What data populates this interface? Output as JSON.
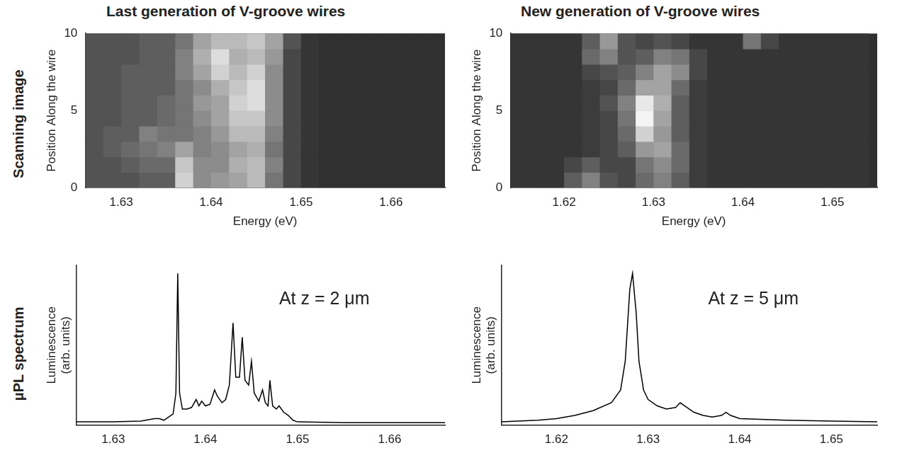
{
  "column_titles": [
    "Last generation of V-groove wires",
    "New generation of V-groove wires"
  ],
  "row_labels": [
    "Scanning image",
    "μPL spectrum"
  ],
  "chart_data": [
    {
      "type": "heatmap",
      "x_label": "Energy (eV)",
      "y_label": "Position Along the wire",
      "xlim": [
        1.626,
        1.666
      ],
      "xticks": [
        1.63,
        1.64,
        1.65,
        1.66
      ],
      "ylim": [
        0,
        10
      ],
      "yticks": [
        0,
        5,
        10
      ],
      "grid": false,
      "cells": {
        "x_edges": [
          1.626,
          1.628,
          1.63,
          1.632,
          1.634,
          1.636,
          1.638,
          1.64,
          1.642,
          1.644,
          1.646,
          1.648,
          1.65,
          1.652,
          1.654,
          1.656,
          1.658,
          1.66,
          1.662,
          1.664,
          1.666
        ],
        "y_edges": [
          0,
          1,
          2,
          3,
          4,
          5,
          6,
          7,
          8,
          9,
          10
        ],
        "values": [
          [
            0.25,
            0.25,
            0.25,
            0.3,
            0.3,
            0.8,
            0.5,
            0.55,
            0.6,
            0.7,
            0.4,
            0.2,
            0.12,
            0.1,
            0.1,
            0.1,
            0.1,
            0.1,
            0.1,
            0.1
          ],
          [
            0.25,
            0.25,
            0.3,
            0.35,
            0.35,
            0.75,
            0.5,
            0.5,
            0.65,
            0.7,
            0.45,
            0.2,
            0.12,
            0.1,
            0.1,
            0.1,
            0.1,
            0.1,
            0.1,
            0.1
          ],
          [
            0.25,
            0.3,
            0.35,
            0.4,
            0.45,
            0.6,
            0.45,
            0.5,
            0.6,
            0.65,
            0.4,
            0.2,
            0.12,
            0.1,
            0.1,
            0.1,
            0.1,
            0.1,
            0.1,
            0.1
          ],
          [
            0.25,
            0.3,
            0.3,
            0.45,
            0.4,
            0.4,
            0.45,
            0.55,
            0.7,
            0.7,
            0.45,
            0.2,
            0.12,
            0.1,
            0.1,
            0.1,
            0.1,
            0.1,
            0.1,
            0.1
          ],
          [
            0.25,
            0.25,
            0.3,
            0.3,
            0.35,
            0.4,
            0.5,
            0.6,
            0.75,
            0.75,
            0.5,
            0.2,
            0.12,
            0.1,
            0.1,
            0.1,
            0.1,
            0.1,
            0.1,
            0.1
          ],
          [
            0.25,
            0.25,
            0.3,
            0.3,
            0.35,
            0.4,
            0.55,
            0.6,
            0.8,
            0.85,
            0.5,
            0.2,
            0.12,
            0.1,
            0.1,
            0.1,
            0.1,
            0.1,
            0.1,
            0.1
          ],
          [
            0.25,
            0.25,
            0.3,
            0.3,
            0.3,
            0.4,
            0.5,
            0.65,
            0.75,
            0.85,
            0.5,
            0.2,
            0.12,
            0.1,
            0.1,
            0.1,
            0.1,
            0.1,
            0.1,
            0.1
          ],
          [
            0.25,
            0.25,
            0.3,
            0.3,
            0.3,
            0.45,
            0.6,
            0.8,
            0.7,
            0.8,
            0.5,
            0.2,
            0.12,
            0.1,
            0.1,
            0.1,
            0.1,
            0.1,
            0.1,
            0.1
          ],
          [
            0.25,
            0.25,
            0.25,
            0.3,
            0.3,
            0.45,
            0.65,
            0.85,
            0.65,
            0.7,
            0.55,
            0.2,
            0.12,
            0.1,
            0.1,
            0.1,
            0.1,
            0.1,
            0.1,
            0.1
          ],
          [
            0.25,
            0.25,
            0.25,
            0.3,
            0.3,
            0.4,
            0.6,
            0.7,
            0.7,
            0.75,
            0.6,
            0.25,
            0.12,
            0.1,
            0.1,
            0.1,
            0.1,
            0.1,
            0.1,
            0.1
          ]
        ]
      }
    },
    {
      "type": "heatmap",
      "x_label": "Energy (eV)",
      "y_label": "Position Along the wire",
      "xlim": [
        1.614,
        1.655
      ],
      "xticks": [
        1.62,
        1.63,
        1.64,
        1.65
      ],
      "ylim": [
        0,
        10
      ],
      "yticks": [
        0,
        5,
        10
      ],
      "grid": false,
      "cells": {
        "x_edges": [
          1.614,
          1.616,
          1.618,
          1.62,
          1.622,
          1.624,
          1.626,
          1.628,
          1.63,
          1.632,
          1.634,
          1.636,
          1.638,
          1.64,
          1.642,
          1.644,
          1.646,
          1.648,
          1.65,
          1.652,
          1.654
        ],
        "y_edges": [
          0,
          1,
          2,
          3,
          4,
          5,
          6,
          7,
          8,
          9,
          10
        ],
        "values": [
          [
            0.12,
            0.12,
            0.12,
            0.3,
            0.45,
            0.25,
            0.2,
            0.35,
            0.45,
            0.3,
            0.15,
            0.12,
            0.12,
            0.12,
            0.12,
            0.12,
            0.12,
            0.12,
            0.12,
            0.12
          ],
          [
            0.12,
            0.12,
            0.12,
            0.2,
            0.3,
            0.2,
            0.2,
            0.4,
            0.5,
            0.35,
            0.15,
            0.12,
            0.12,
            0.12,
            0.12,
            0.12,
            0.12,
            0.12,
            0.12,
            0.12
          ],
          [
            0.12,
            0.12,
            0.12,
            0.12,
            0.15,
            0.2,
            0.3,
            0.55,
            0.6,
            0.35,
            0.15,
            0.12,
            0.12,
            0.12,
            0.12,
            0.12,
            0.12,
            0.12,
            0.12,
            0.12
          ],
          [
            0.12,
            0.12,
            0.12,
            0.12,
            0.15,
            0.2,
            0.35,
            0.8,
            0.55,
            0.3,
            0.15,
            0.12,
            0.12,
            0.12,
            0.12,
            0.12,
            0.12,
            0.12,
            0.12,
            0.12
          ],
          [
            0.12,
            0.12,
            0.12,
            0.12,
            0.15,
            0.2,
            0.4,
            0.95,
            0.6,
            0.3,
            0.15,
            0.12,
            0.12,
            0.12,
            0.12,
            0.12,
            0.12,
            0.12,
            0.12,
            0.12
          ],
          [
            0.12,
            0.12,
            0.12,
            0.12,
            0.15,
            0.25,
            0.45,
            0.9,
            0.65,
            0.3,
            0.15,
            0.12,
            0.12,
            0.12,
            0.12,
            0.12,
            0.12,
            0.12,
            0.12,
            0.12
          ],
          [
            0.12,
            0.12,
            0.12,
            0.12,
            0.15,
            0.2,
            0.35,
            0.6,
            0.6,
            0.35,
            0.15,
            0.12,
            0.12,
            0.12,
            0.12,
            0.12,
            0.12,
            0.12,
            0.12,
            0.12
          ],
          [
            0.12,
            0.12,
            0.12,
            0.12,
            0.2,
            0.25,
            0.3,
            0.45,
            0.6,
            0.5,
            0.2,
            0.12,
            0.12,
            0.12,
            0.12,
            0.12,
            0.12,
            0.12,
            0.12,
            0.12
          ],
          [
            0.12,
            0.12,
            0.12,
            0.12,
            0.35,
            0.45,
            0.25,
            0.3,
            0.45,
            0.4,
            0.2,
            0.12,
            0.12,
            0.12,
            0.12,
            0.12,
            0.12,
            0.12,
            0.12,
            0.12
          ],
          [
            0.12,
            0.12,
            0.12,
            0.12,
            0.3,
            0.55,
            0.25,
            0.2,
            0.25,
            0.2,
            0.12,
            0.12,
            0.12,
            0.4,
            0.2,
            0.12,
            0.12,
            0.12,
            0.12,
            0.12
          ]
        ]
      }
    },
    {
      "type": "line",
      "y_label": "Luminescence (arb. units)",
      "annotation": "At z = 2 μm",
      "xlim": [
        1.626,
        1.666
      ],
      "xticks": [
        1.63,
        1.64,
        1.65,
        1.66
      ],
      "ylim": [
        0,
        100
      ],
      "grid": false,
      "tick_labels": "x",
      "color": "#000000",
      "x": [
        1.626,
        1.63,
        1.633,
        1.6345,
        1.635,
        1.6355,
        1.636,
        1.6365,
        1.6368,
        1.637,
        1.6372,
        1.6375,
        1.638,
        1.6385,
        1.639,
        1.6393,
        1.6396,
        1.64,
        1.6405,
        1.641,
        1.6413,
        1.6418,
        1.6422,
        1.6426,
        1.643,
        1.6433,
        1.6437,
        1.644,
        1.6443,
        1.6447,
        1.645,
        1.6453,
        1.6458,
        1.6462,
        1.6465,
        1.6468,
        1.647,
        1.6473,
        1.6477,
        1.648,
        1.6485,
        1.649,
        1.6495,
        1.65,
        1.655,
        1.666
      ],
      "values": [
        2,
        2,
        2.5,
        4,
        4,
        3,
        5,
        7,
        20,
        95,
        20,
        10,
        10,
        11,
        16,
        12,
        15,
        12,
        13,
        22,
        18,
        14,
        16,
        25,
        64,
        30,
        30,
        55,
        28,
        25,
        40,
        20,
        15,
        22,
        14,
        12,
        28,
        12,
        10,
        12,
        8,
        6,
        3,
        2,
        1.5,
        1.5
      ]
    },
    {
      "type": "line",
      "y_label": "Luminescence (arb. units)",
      "annotation": "At z = 5 μm",
      "xlim": [
        1.614,
        1.655
      ],
      "xticks": [
        1.62,
        1.63,
        1.64,
        1.65
      ],
      "ylim": [
        0,
        100
      ],
      "grid": false,
      "tick_labels": "x",
      "color": "#000000",
      "x": [
        1.614,
        1.618,
        1.62,
        1.622,
        1.624,
        1.626,
        1.627,
        1.6275,
        1.628,
        1.6283,
        1.6287,
        1.629,
        1.6295,
        1.63,
        1.631,
        1.632,
        1.633,
        1.6335,
        1.634,
        1.635,
        1.636,
        1.637,
        1.638,
        1.6385,
        1.639,
        1.64,
        1.645,
        1.65,
        1.655
      ],
      "values": [
        2,
        3,
        4,
        6,
        9,
        14,
        22,
        40,
        85,
        95,
        70,
        40,
        22,
        16,
        12,
        10,
        11,
        14,
        12,
        8,
        6,
        5,
        6,
        8,
        6,
        4,
        3,
        2.5,
        2
      ]
    }
  ]
}
